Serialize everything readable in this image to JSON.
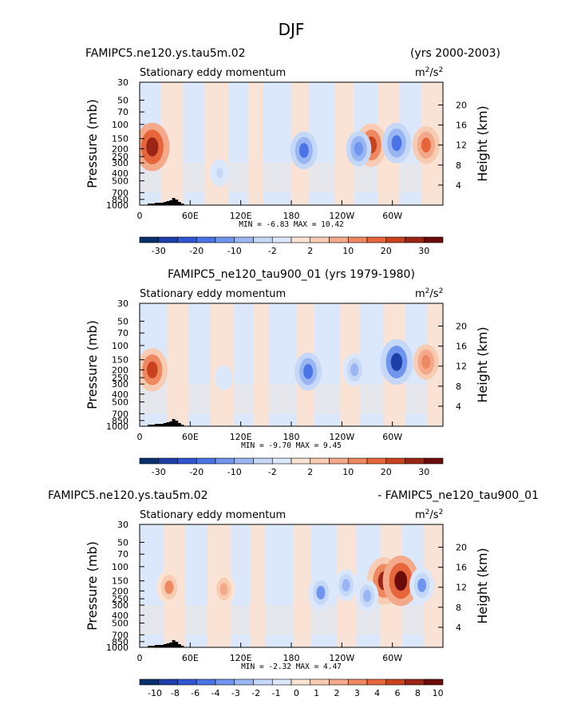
{
  "page_title": "DJF",
  "colors": {
    "blues": [
      "#08306b",
      "#1c3fa8",
      "#2f55d2",
      "#4a74e6",
      "#6f95ee",
      "#9ab6f2",
      "#c6d8f8",
      "#dbe8fb"
    ],
    "oranges": [
      "#fbe3d4",
      "#f8ccb2",
      "#f3a98a",
      "#ee8860",
      "#e6653a",
      "#c8421e",
      "#9a2514",
      "#6a0d0a"
    ]
  },
  "chart_data": [
    {
      "type": "heatmap",
      "title_left": "FAMIPC5.ne120.ys.tau5m.02",
      "title_center": "",
      "title_right": "(yrs 2000-2003)",
      "subtitle": "Stationary eddy momentum",
      "units": "m²/s²",
      "units_base": "m",
      "units_exp1": "2",
      "units_mid": "/s",
      "units_exp2": "2",
      "ylabel": "Pressure (mb)",
      "ylabel_right": "Height (km)",
      "y_ticks": [
        "30",
        "50",
        "70",
        "100",
        "150",
        "200",
        "250",
        "300",
        "400",
        "500",
        "700",
        "850",
        "1000"
      ],
      "y_ticks_right": [
        "20",
        "16",
        "12",
        "8",
        "4"
      ],
      "x_ticks": [
        "0",
        "60E",
        "120E",
        "180",
        "120W",
        "60W"
      ],
      "stats": "MIN =   -6.83   MAX =   10.42",
      "colorbar_labels": [
        "-30",
        "-20",
        "-10",
        "-2",
        "2",
        "10",
        "20",
        "30"
      ],
      "features": [
        {
          "lon": 15,
          "p": 190,
          "value": 10
        },
        {
          "lon": 195,
          "p": 210,
          "value": -6
        },
        {
          "lon": 275,
          "p": 180,
          "value": 8
        },
        {
          "lon": 260,
          "p": 200,
          "value": -5
        },
        {
          "lon": 305,
          "p": 170,
          "value": -7
        },
        {
          "lon": 340,
          "p": 180,
          "value": 6
        },
        {
          "lon": 95,
          "p": 400,
          "value": -2
        }
      ]
    },
    {
      "type": "heatmap",
      "title_left": "",
      "title_center": "FAMIPC5_ne120_tau900_01 (yrs 1979-1980)",
      "title_right": "",
      "subtitle": "Stationary eddy momentum",
      "units": "m²/s²",
      "units_base": "m",
      "units_exp1": "2",
      "units_mid": "/s",
      "units_exp2": "2",
      "ylabel": "Pressure (mb)",
      "ylabel_right": "Height (km)",
      "y_ticks": [
        "30",
        "50",
        "70",
        "100",
        "150",
        "200",
        "250",
        "300",
        "400",
        "500",
        "700",
        "850",
        "1000"
      ],
      "y_ticks_right": [
        "20",
        "16",
        "12",
        "8",
        "4"
      ],
      "x_ticks": [
        "0",
        "60E",
        "120E",
        "180",
        "120W",
        "60W"
      ],
      "stats": "MIN =   -9.70   MAX =   9.45",
      "colorbar_labels": [
        "-30",
        "-20",
        "-10",
        "-2",
        "2",
        "10",
        "20",
        "30"
      ],
      "features": [
        {
          "lon": 15,
          "p": 200,
          "value": 8
        },
        {
          "lon": 200,
          "p": 210,
          "value": -6
        },
        {
          "lon": 255,
          "p": 200,
          "value": -4
        },
        {
          "lon": 305,
          "p": 160,
          "value": -9
        },
        {
          "lon": 340,
          "p": 160,
          "value": 5
        },
        {
          "lon": 100,
          "p": 250,
          "value": -1
        }
      ]
    },
    {
      "type": "heatmap",
      "title_left": "FAMIPC5.ne120.ys.tau5m.02",
      "title_center": "",
      "title_right": "- FAMIPC5_ne120_tau900_01",
      "subtitle": "Stationary eddy momentum",
      "units": "m²/s²",
      "units_base": "m",
      "units_exp1": "2",
      "units_mid": "/s",
      "units_exp2": "2",
      "ylabel": "Pressure (mb)",
      "ylabel_right": "Height (km)",
      "y_ticks": [
        "30",
        "50",
        "70",
        "100",
        "150",
        "200",
        "250",
        "300",
        "400",
        "500",
        "700",
        "850",
        "1000"
      ],
      "y_ticks_right": [
        "20",
        "16",
        "12",
        "8",
        "4"
      ],
      "x_ticks": [
        "0",
        "60E",
        "120E",
        "180",
        "120W",
        "60W"
      ],
      "stats": "MIN =   -2.32   MAX =   4.47",
      "colorbar_labels": [
        "-10",
        "-8",
        "-6",
        "-4",
        "-3",
        "-2",
        "-1",
        "0",
        "1",
        "2",
        "3",
        "4",
        "6",
        "8",
        "10"
      ],
      "features": [
        {
          "lon": 35,
          "p": 180,
          "value": 2
        },
        {
          "lon": 100,
          "p": 190,
          "value": 1.5
        },
        {
          "lon": 215,
          "p": 210,
          "value": -2
        },
        {
          "lon": 245,
          "p": 170,
          "value": -1.5
        },
        {
          "lon": 290,
          "p": 150,
          "value": 4
        },
        {
          "lon": 310,
          "p": 150,
          "value": 4.5
        },
        {
          "lon": 335,
          "p": 170,
          "value": -2
        },
        {
          "lon": 270,
          "p": 230,
          "value": -1.5
        }
      ]
    }
  ]
}
